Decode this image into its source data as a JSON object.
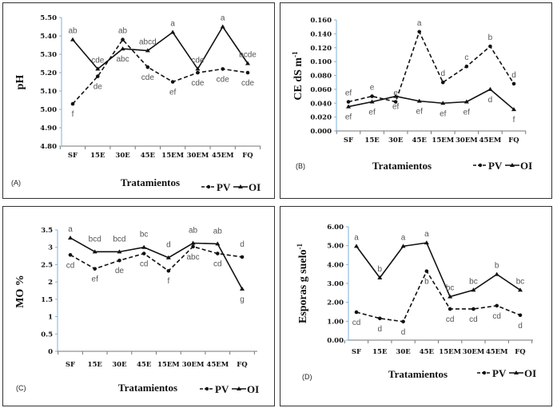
{
  "chart_data": [
    {
      "type": "line",
      "panel_label": "(A)",
      "ylabel": "pH",
      "xlabel": "Tratamientos",
      "categories": [
        "SF",
        "15E",
        "30E",
        "45E",
        "15EM",
        "30EM",
        "45EM",
        "FQ"
      ],
      "ylim": [
        4.8,
        5.5
      ],
      "yticks": [
        "4.80",
        "4.90",
        "5.00",
        "5.10",
        "5.20",
        "5.30",
        "5.40",
        "5.50"
      ],
      "legend": [
        "PV",
        "OI"
      ],
      "series": [
        {
          "name": "PV",
          "style": "dashed",
          "marker": "circle",
          "values": [
            5.03,
            5.18,
            5.38,
            5.23,
            5.15,
            5.2,
            5.22,
            5.2
          ],
          "letters": [
            "f",
            "de",
            "ab",
            "cde",
            "ef",
            "cde",
            "cde",
            "cde"
          ],
          "letter_pos": [
            "below",
            "below",
            "above",
            "below",
            "below",
            "below",
            "below",
            "below"
          ]
        },
        {
          "name": "OI",
          "style": "solid",
          "marker": "triangle",
          "values": [
            5.38,
            5.22,
            5.33,
            5.32,
            5.42,
            5.22,
            5.45,
            5.25
          ],
          "letters": [
            "ab",
            "cde",
            "abc",
            "abcd",
            "a",
            "cde",
            "a",
            "bcde"
          ],
          "letter_pos": [
            "above",
            "above",
            "below",
            "above",
            "above",
            "above",
            "above",
            "above"
          ]
        }
      ]
    },
    {
      "type": "line",
      "panel_label": "(B)",
      "ylabel": "CE dS m",
      "ylabel_sup": "-1",
      "xlabel": "Tratamientos",
      "categories": [
        "SF",
        "15E",
        "30E",
        "45E",
        "15EM",
        "30EM",
        "45EM",
        "FQ"
      ],
      "ylim": [
        0,
        0.16
      ],
      "yticks": [
        "0.000",
        "0.020",
        "0.040",
        "0.060",
        "0.080",
        "0.100",
        "0.120",
        "0.140",
        "0.160"
      ],
      "legend": [
        "PV",
        "OI"
      ],
      "series": [
        {
          "name": "PV",
          "style": "dashed",
          "marker": "circle",
          "values": [
            0.042,
            0.05,
            0.042,
            0.143,
            0.07,
            0.093,
            0.122,
            0.068
          ],
          "letters": [
            "ef",
            "e",
            "e",
            "a",
            "d",
            "c",
            "b",
            "d"
          ],
          "letter_pos": [
            "above",
            "above",
            "above",
            "above",
            "above",
            "above",
            "above",
            "above"
          ]
        },
        {
          "name": "OI",
          "style": "solid",
          "marker": "triangle",
          "values": [
            0.035,
            0.042,
            0.05,
            0.043,
            0.04,
            0.042,
            0.06,
            0.031
          ],
          "letters": [
            "ef",
            "ef",
            "ef",
            "ef",
            "ef",
            "ef",
            "d",
            "f"
          ],
          "letter_pos": [
            "below",
            "below",
            "below",
            "below",
            "below",
            "below",
            "below",
            "below"
          ]
        }
      ]
    },
    {
      "type": "line",
      "panel_label": "(C)",
      "ylabel": "MO %",
      "xlabel": "Tratamientos",
      "categories": [
        "SF",
        "15E",
        "30E",
        "45E",
        "15EM",
        "30EM",
        "45EM",
        "FQ"
      ],
      "ylim": [
        0,
        3.5
      ],
      "yticks": [
        "0",
        "0.5",
        "1",
        "1.5",
        "2",
        "2.5",
        "3",
        "3.5"
      ],
      "legend": [
        "PV",
        "OI"
      ],
      "series": [
        {
          "name": "PV",
          "style": "dashed",
          "marker": "circle",
          "values": [
            2.78,
            2.38,
            2.62,
            2.82,
            2.32,
            3.02,
            2.82,
            2.72
          ],
          "letters": [
            "cd",
            "ef",
            "de",
            "cd",
            "f",
            "abc",
            "cd",
            "d"
          ],
          "letter_pos": [
            "below",
            "below",
            "below",
            "below",
            "below",
            "below",
            "below",
            "above2"
          ]
        },
        {
          "name": "OI",
          "style": "solid",
          "marker": "triangle",
          "values": [
            3.27,
            2.87,
            2.87,
            3.0,
            2.7,
            3.12,
            3.1,
            1.8
          ],
          "letters": [
            "a",
            "bcd",
            "bcd",
            "bc",
            "d",
            "ab",
            "ab",
            "g"
          ],
          "letter_pos": [
            "above",
            "above2",
            "above2",
            "above2",
            "above2",
            "above2",
            "above2",
            "below"
          ]
        }
      ]
    },
    {
      "type": "line",
      "panel_label": "(D)",
      "ylabel": "Esporas g suelo",
      "ylabel_sup": "-1",
      "xlabel": "Tratamientos",
      "categories": [
        "SF",
        "15E",
        "30E",
        "45E",
        "15EM",
        "30EM",
        "45EM",
        "FQ"
      ],
      "ylim": [
        0,
        6.0
      ],
      "yticks": [
        "0.00",
        "1.00",
        "2.00",
        "3.00",
        "4.00",
        "5.00",
        "6.00"
      ],
      "legend": [
        "PV",
        "OI"
      ],
      "series": [
        {
          "name": "PV",
          "style": "dashed",
          "marker": "circle",
          "values": [
            1.48,
            1.15,
            0.98,
            3.65,
            1.65,
            1.65,
            1.82,
            1.32
          ],
          "letters": [
            "cd",
            "d",
            "d",
            "b",
            "cd",
            "cd",
            "cd",
            "d"
          ],
          "letter_pos": [
            "below",
            "below",
            "below",
            "below",
            "below",
            "below",
            "below",
            "below"
          ]
        },
        {
          "name": "OI",
          "style": "solid",
          "marker": "triangle",
          "values": [
            4.97,
            3.3,
            4.97,
            5.15,
            2.3,
            2.65,
            3.48,
            2.65
          ],
          "letters": [
            "a",
            "b",
            "a",
            "a",
            "bc",
            "bc",
            "b",
            "bc"
          ],
          "letter_pos": [
            "above",
            "above",
            "above",
            "above",
            "above",
            "above",
            "above",
            "above"
          ]
        }
      ]
    }
  ]
}
